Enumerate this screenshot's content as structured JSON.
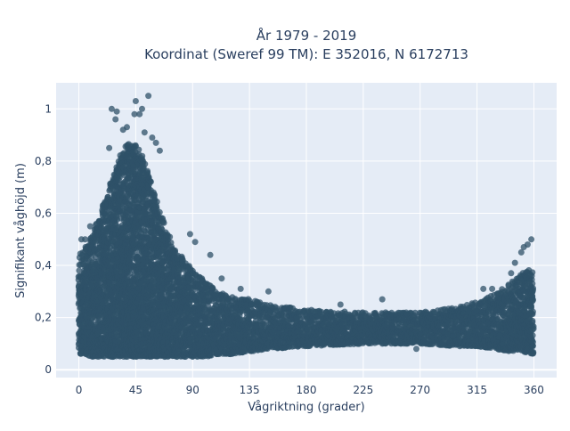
{
  "chart_data": {
    "type": "scatter",
    "title_line1": "År 1979 - 2019",
    "title_line2": "Koordinat (Sweref 99 TM): E 352016, N 6172713",
    "xlabel": "Vågriktning (grader)",
    "ylabel": "Signifikant våghöjd (m)",
    "xlim": [
      -18,
      378
    ],
    "ylim": [
      -0.03,
      1.1
    ],
    "x_ticks": [
      0,
      45,
      90,
      135,
      180,
      225,
      270,
      315,
      360
    ],
    "x_tick_labels": [
      "0",
      "45",
      "90",
      "135",
      "180",
      "225",
      "270",
      "315",
      "360"
    ],
    "y_ticks": [
      0,
      0.2,
      0.4,
      0.6,
      0.8,
      1
    ],
    "y_tick_labels": [
      "0",
      "0,2",
      "0,4",
      "0,6",
      "0,8",
      "1"
    ],
    "grid": true,
    "legend": "none",
    "colors": {
      "marker": "#2f5168",
      "plot_background": "#e5ecf6",
      "grid": "#ffffff",
      "text": "#2a3f5f"
    },
    "envelope": {
      "direction": [
        0,
        5,
        10,
        15,
        20,
        25,
        30,
        35,
        40,
        45,
        50,
        55,
        60,
        65,
        70,
        75,
        80,
        85,
        90,
        100,
        110,
        120,
        135,
        150,
        180,
        225,
        270,
        300,
        315,
        330,
        340,
        350,
        360
      ],
      "upper": [
        0.44,
        0.47,
        0.52,
        0.58,
        0.64,
        0.72,
        0.78,
        0.85,
        0.87,
        0.86,
        0.83,
        0.76,
        0.68,
        0.6,
        0.54,
        0.47,
        0.44,
        0.41,
        0.38,
        0.34,
        0.3,
        0.28,
        0.27,
        0.25,
        0.23,
        0.22,
        0.22,
        0.24,
        0.26,
        0.29,
        0.33,
        0.37,
        0.39
      ],
      "lower": [
        0.06,
        0.06,
        0.05,
        0.05,
        0.05,
        0.05,
        0.05,
        0.05,
        0.05,
        0.05,
        0.05,
        0.05,
        0.05,
        0.05,
        0.05,
        0.05,
        0.05,
        0.05,
        0.05,
        0.05,
        0.06,
        0.06,
        0.07,
        0.08,
        0.09,
        0.1,
        0.1,
        0.09,
        0.09,
        0.08,
        0.07,
        0.07,
        0.06
      ]
    },
    "outliers": [
      {
        "x": 45,
        "y": 1.03
      },
      {
        "x": 48,
        "y": 0.98
      },
      {
        "x": 44,
        "y": 0.98
      },
      {
        "x": 26,
        "y": 1.0
      },
      {
        "x": 30,
        "y": 0.99
      },
      {
        "x": 50,
        "y": 1.0
      },
      {
        "x": 55,
        "y": 1.05
      },
      {
        "x": 52,
        "y": 0.91
      },
      {
        "x": 58,
        "y": 0.89
      },
      {
        "x": 29,
        "y": 0.96
      },
      {
        "x": 38,
        "y": 0.93
      },
      {
        "x": 35,
        "y": 0.92
      },
      {
        "x": 61,
        "y": 0.87
      },
      {
        "x": 64,
        "y": 0.84
      },
      {
        "x": 24,
        "y": 0.85
      },
      {
        "x": 88,
        "y": 0.52
      },
      {
        "x": 92,
        "y": 0.49
      },
      {
        "x": 104,
        "y": 0.44
      },
      {
        "x": 113,
        "y": 0.35
      },
      {
        "x": 128,
        "y": 0.31
      },
      {
        "x": 150,
        "y": 0.3
      },
      {
        "x": 240,
        "y": 0.27
      },
      {
        "x": 207,
        "y": 0.25
      },
      {
        "x": 267,
        "y": 0.08
      },
      {
        "x": 320,
        "y": 0.31
      },
      {
        "x": 327,
        "y": 0.31
      },
      {
        "x": 342,
        "y": 0.37
      },
      {
        "x": 345,
        "y": 0.41
      },
      {
        "x": 350,
        "y": 0.45
      },
      {
        "x": 355,
        "y": 0.48
      },
      {
        "x": 358,
        "y": 0.5
      },
      {
        "x": 352,
        "y": 0.47
      },
      {
        "x": 14,
        "y": 0.56
      },
      {
        "x": 9,
        "y": 0.55
      },
      {
        "x": 5,
        "y": 0.5
      },
      {
        "x": 2,
        "y": 0.5
      }
    ]
  }
}
